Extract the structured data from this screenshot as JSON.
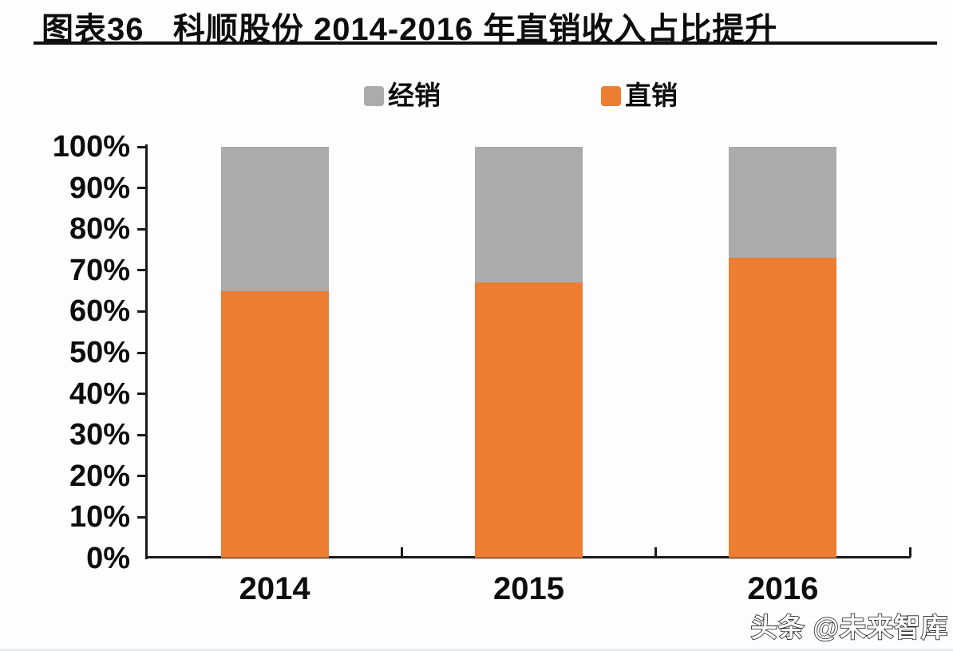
{
  "header": {
    "title": "图表36   科顺股份 2014-2016 年直销收入占比提升"
  },
  "footer": {
    "watermark": "头条 @未来智库"
  },
  "chart_data": {
    "type": "bar",
    "subtype": "stacked-100-percent",
    "title": "科顺股份 2014-2016 年直销收入占比提升",
    "categories": [
      "2014",
      "2015",
      "2016"
    ],
    "series": [
      {
        "name": "直销",
        "color": "#ED7D31",
        "values": [
          65,
          67,
          73
        ]
      },
      {
        "name": "经销",
        "color": "#ABABAB",
        "values": [
          35,
          33,
          27
        ]
      }
    ],
    "ylim": [
      0,
      100
    ],
    "ytick_step": 10,
    "yticks": [
      "0%",
      "10%",
      "20%",
      "30%",
      "40%",
      "50%",
      "60%",
      "70%",
      "80%",
      "90%",
      "100%"
    ],
    "xlabel": "",
    "ylabel": "",
    "legend_position": "top",
    "grid": false,
    "colors": {
      "axis": "#1a1a1a",
      "text": "#0d0d0d",
      "background": "#fdfdfe"
    }
  }
}
